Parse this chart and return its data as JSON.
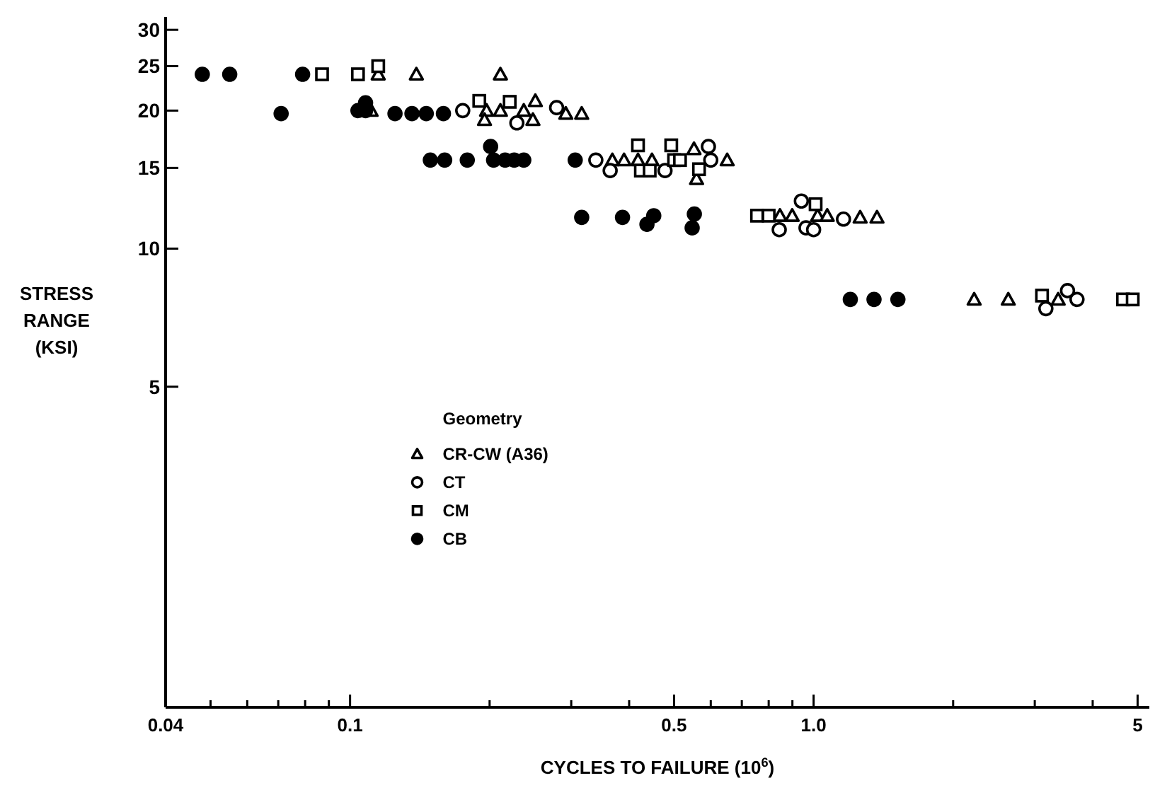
{
  "chart_data": {
    "type": "scatter",
    "xlabel": "CYCLES TO FAILURE (10$^{6}$)",
    "ylabel": "STRESS RANGE (KSI)",
    "legend_title": "Geometry",
    "legend": "center left",
    "log": "xy",
    "grid": false,
    "xlim": [
      0.04,
      5.3
    ],
    "ylim": [
      1,
      32
    ],
    "xticks": [
      {
        "value": 0.04,
        "label": "0.04"
      },
      {
        "value": 0.05,
        "label": null
      },
      {
        "value": 0.06,
        "label": null
      },
      {
        "value": 0.07,
        "label": null
      },
      {
        "value": 0.08,
        "label": null
      },
      {
        "value": 0.09,
        "label": null
      },
      {
        "value": 0.1,
        "label": "0.1"
      },
      {
        "value": 0.2,
        "label": null
      },
      {
        "value": 0.3,
        "label": null
      },
      {
        "value": 0.4,
        "label": null
      },
      0.5,
      {
        "value": 0.6,
        "label": null
      },
      {
        "value": 0.7,
        "label": null
      },
      {
        "value": 0.8,
        "label": null
      },
      {
        "value": 0.9,
        "label": null
      },
      {
        "value": 1,
        "label": "1.0"
      },
      {
        "value": 2,
        "label": null
      },
      {
        "value": 3,
        "label": null
      },
      {
        "value": 4,
        "label": null
      },
      5
    ],
    "yticks": [
      5,
      10,
      15,
      20,
      25,
      30
    ],
    "series": [
      {
        "name": "CR-CW (A36)",
        "color": "#000000",
        "marker": "triangle",
        "x": [
          0.115,
          0.139,
          0.211,
          0.111,
          0.197,
          0.195,
          0.211,
          0.237,
          0.248,
          0.251,
          0.292,
          0.316,
          0.368,
          0.39,
          0.418,
          0.448,
          0.552,
          0.559,
          0.651,
          0.846,
          0.899,
          1.02,
          1.07,
          1.26,
          1.37,
          2.22,
          2.63,
          3.37
        ],
        "values": [
          24,
          24,
          24,
          20,
          20,
          19.1,
          20,
          20,
          19.1,
          21,
          19.7,
          19.7,
          15.6,
          15.6,
          15.6,
          15.6,
          16.5,
          14.2,
          15.6,
          11.8,
          11.8,
          11.8,
          11.8,
          11.7,
          11.7,
          7.75,
          7.75,
          7.75
        ]
      },
      {
        "name": "CT",
        "color": "#000000",
        "marker": "circle",
        "x": [
          0.175,
          0.229,
          0.279,
          0.339,
          0.364,
          0.478,
          0.593,
          0.6,
          0.843,
          0.941,
          0.963,
          1.0,
          1.16,
          3.17,
          3.53,
          3.7
        ],
        "values": [
          20,
          18.8,
          20.3,
          15.6,
          14.8,
          14.8,
          16.7,
          15.6,
          11.0,
          12.7,
          11.1,
          11.0,
          11.6,
          7.4,
          8.1,
          7.75
        ]
      },
      {
        "name": "CM",
        "color": "#000000",
        "marker": "square",
        "x": [
          0.087,
          0.104,
          0.115,
          0.19,
          0.221,
          0.418,
          0.424,
          0.443,
          0.493,
          0.5,
          0.515,
          0.566,
          0.755,
          0.8,
          1.01,
          3.11,
          4.65,
          4.88
        ],
        "values": [
          24,
          24,
          25,
          21,
          20.9,
          16.8,
          14.8,
          14.8,
          16.8,
          15.6,
          15.6,
          14.9,
          11.8,
          11.8,
          12.5,
          7.9,
          7.75,
          7.75
        ]
      },
      {
        "name": "CB",
        "color": "#000000",
        "marker": "circle",
        "x": [
          0.048,
          0.055,
          0.071,
          0.079,
          0.104,
          0.108,
          0.108,
          0.125,
          0.136,
          0.146,
          0.159,
          0.149,
          0.16,
          0.179,
          0.201,
          0.204,
          0.216,
          0.226,
          0.237,
          0.306,
          0.316,
          0.387,
          0.437,
          0.452,
          0.547,
          0.553,
          1.2,
          1.35,
          1.52
        ],
        "values": [
          24,
          24,
          19.7,
          24,
          20,
          20,
          20.8,
          19.7,
          19.7,
          19.7,
          19.7,
          15.6,
          15.6,
          15.6,
          16.7,
          15.6,
          15.6,
          15.6,
          15.6,
          15.6,
          11.7,
          11.7,
          11.3,
          11.8,
          11.1,
          11.9,
          7.75,
          7.75,
          7.75
        ]
      }
    ]
  }
}
